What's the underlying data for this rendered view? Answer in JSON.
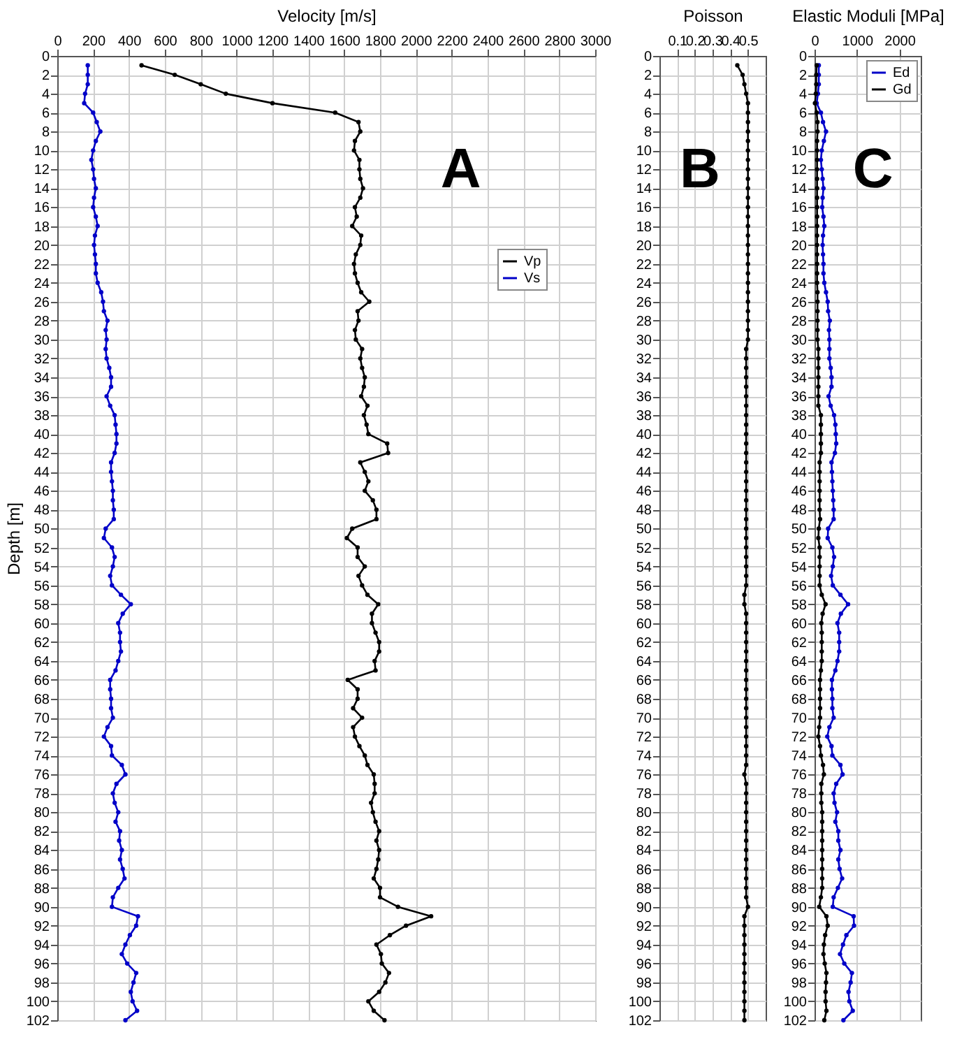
{
  "chart_data": [
    {
      "type": "line",
      "xlabel": "Velocity [m/s]",
      "ylabel": "Depth [m]",
      "annotations": [
        "A"
      ],
      "xlim": [
        0,
        3000
      ],
      "xticks": [
        0,
        200,
        400,
        600,
        800,
        1000,
        1200,
        1400,
        1600,
        1800,
        2000,
        2200,
        2400,
        2600,
        2800,
        3000
      ],
      "ylim": [
        102,
        0
      ],
      "yticks": [
        0,
        2,
        4,
        6,
        8,
        10,
        12,
        14,
        16,
        18,
        20,
        22,
        24,
        26,
        28,
        30,
        32,
        34,
        36,
        38,
        40,
        42,
        44,
        46,
        48,
        50,
        52,
        54,
        56,
        58,
        60,
        62,
        64,
        66,
        68,
        70,
        72,
        74,
        76,
        78,
        80,
        82,
        84,
        86,
        88,
        90,
        92,
        94,
        96,
        98,
        100,
        102
      ],
      "grid": true,
      "legend": "right",
      "marker": "circle",
      "line_style": "solid",
      "series": [
        {
          "name": "Vp",
          "color": "#000000",
          "x": [
            470,
            655,
            800,
            940,
            1200,
            1550,
            1680,
            1690,
            1660,
            1655,
            1685,
            1685,
            1690,
            1705,
            1690,
            1660,
            1670,
            1645,
            1695,
            1690,
            1665,
            1655,
            1660,
            1675,
            1695,
            1740,
            1675,
            1680,
            1660,
            1665,
            1700,
            1690,
            1700,
            1715,
            1710,
            1695,
            1730,
            1710,
            1725,
            1735,
            1840,
            1845,
            1690,
            1715,
            1735,
            1715,
            1760,
            1780,
            1780,
            1645,
            1615,
            1675,
            1675,
            1715,
            1680,
            1700,
            1730,
            1790,
            1755,
            1755,
            1775,
            1795,
            1795,
            1770,
            1775,
            1620,
            1675,
            1675,
            1650,
            1700,
            1650,
            1660,
            1685,
            1715,
            1730,
            1765,
            1770,
            1770,
            1750,
            1760,
            1775,
            1795,
            1780,
            1795,
            1790,
            1780,
            1765,
            1800,
            1800,
            1900,
            2085,
            1945,
            1855,
            1780,
            1805,
            1810,
            1850,
            1830,
            1795,
            1735,
            1765,
            1825
          ],
          "values": [
            1,
            2,
            3,
            4,
            5,
            6,
            7,
            8,
            9,
            10,
            11,
            12,
            13,
            14,
            15,
            16,
            17,
            18,
            19,
            20,
            21,
            22,
            23,
            24,
            25,
            26,
            27,
            28,
            29,
            30,
            31,
            32,
            33,
            34,
            35,
            36,
            37,
            38,
            39,
            40,
            41,
            42,
            43,
            44,
            45,
            46,
            47,
            48,
            49,
            50,
            51,
            52,
            53,
            54,
            55,
            56,
            57,
            58,
            59,
            60,
            61,
            62,
            63,
            64,
            65,
            66,
            67,
            68,
            69,
            70,
            71,
            72,
            73,
            74,
            75,
            76,
            77,
            78,
            79,
            80,
            81,
            82,
            83,
            84,
            85,
            86,
            87,
            88,
            89,
            90,
            91,
            92,
            93,
            94,
            95,
            96,
            97,
            98,
            99,
            100,
            101,
            102
          ]
        },
        {
          "name": "Vs",
          "color": "#0000c8",
          "x": [
            170,
            170,
            170,
            155,
            150,
            200,
            220,
            240,
            215,
            200,
            190,
            200,
            205,
            215,
            205,
            200,
            215,
            225,
            210,
            205,
            210,
            215,
            215,
            225,
            245,
            255,
            260,
            280,
            270,
            275,
            270,
            275,
            290,
            300,
            300,
            275,
            295,
            320,
            325,
            330,
            330,
            320,
            300,
            300,
            305,
            310,
            310,
            315,
            315,
            270,
            260,
            305,
            320,
            310,
            295,
            305,
            355,
            410,
            365,
            340,
            350,
            350,
            355,
            340,
            325,
            295,
            295,
            300,
            300,
            310,
            280,
            260,
            300,
            305,
            360,
            380,
            330,
            310,
            320,
            340,
            325,
            350,
            345,
            360,
            350,
            365,
            375,
            340,
            310,
            305,
            450,
            440,
            405,
            380,
            360,
            390,
            440,
            425,
            410,
            420,
            445,
            380
          ],
          "values": [
            1,
            2,
            3,
            4,
            5,
            6,
            7,
            8,
            9,
            10,
            11,
            12,
            13,
            14,
            15,
            16,
            17,
            18,
            19,
            20,
            21,
            22,
            23,
            24,
            25,
            26,
            27,
            28,
            29,
            30,
            31,
            32,
            33,
            34,
            35,
            36,
            37,
            38,
            39,
            40,
            41,
            42,
            43,
            44,
            45,
            46,
            47,
            48,
            49,
            50,
            51,
            52,
            53,
            54,
            55,
            56,
            57,
            58,
            59,
            60,
            61,
            62,
            63,
            64,
            65,
            66,
            67,
            68,
            69,
            70,
            71,
            72,
            73,
            74,
            75,
            76,
            77,
            78,
            79,
            80,
            81,
            82,
            83,
            84,
            85,
            86,
            87,
            88,
            89,
            90,
            91,
            92,
            93,
            94,
            95,
            96,
            97,
            98,
            99,
            100,
            101,
            102
          ]
        }
      ]
    },
    {
      "type": "line",
      "xlabel": "Poisson",
      "annotations": [
        "B"
      ],
      "xlim": [
        0,
        0.6
      ],
      "xticks": [
        0.1,
        0.2,
        0.3,
        0.4,
        0.5
      ],
      "ylim": [
        102,
        0
      ],
      "yticks": [
        0,
        2,
        4,
        6,
        8,
        10,
        12,
        14,
        16,
        18,
        20,
        22,
        24,
        26,
        28,
        30,
        32,
        34,
        36,
        38,
        40,
        42,
        44,
        46,
        48,
        50,
        52,
        54,
        56,
        58,
        60,
        62,
        64,
        66,
        68,
        70,
        72,
        74,
        76,
        78,
        80,
        82,
        84,
        86,
        88,
        90,
        92,
        94,
        96,
        98,
        100,
        102
      ],
      "grid": true,
      "marker": "circle",
      "line_style": "solid",
      "series": [
        {
          "color": "#000000",
          "x": [
            0.44,
            0.47,
            0.48,
            0.49,
            0.5,
            0.5,
            0.5,
            0.5,
            0.5,
            0.5,
            0.5,
            0.5,
            0.5,
            0.5,
            0.5,
            0.5,
            0.5,
            0.5,
            0.5,
            0.5,
            0.5,
            0.5,
            0.5,
            0.5,
            0.5,
            0.5,
            0.5,
            0.5,
            0.5,
            0.5,
            0.49,
            0.49,
            0.49,
            0.49,
            0.49,
            0.49,
            0.49,
            0.49,
            0.49,
            0.49,
            0.49,
            0.49,
            0.49,
            0.49,
            0.49,
            0.49,
            0.49,
            0.49,
            0.49,
            0.49,
            0.49,
            0.49,
            0.49,
            0.49,
            0.49,
            0.49,
            0.48,
            0.48,
            0.49,
            0.49,
            0.49,
            0.49,
            0.49,
            0.49,
            0.49,
            0.49,
            0.49,
            0.49,
            0.49,
            0.49,
            0.49,
            0.49,
            0.49,
            0.49,
            0.49,
            0.48,
            0.49,
            0.49,
            0.49,
            0.49,
            0.49,
            0.49,
            0.49,
            0.49,
            0.49,
            0.49,
            0.49,
            0.49,
            0.49,
            0.5,
            0.48,
            0.48,
            0.48,
            0.48,
            0.48,
            0.48,
            0.48,
            0.48,
            0.48,
            0.48,
            0.48,
            0.48
          ],
          "values": [
            1,
            2,
            3,
            4,
            5,
            6,
            7,
            8,
            9,
            10,
            11,
            12,
            13,
            14,
            15,
            16,
            17,
            18,
            19,
            20,
            21,
            22,
            23,
            24,
            25,
            26,
            27,
            28,
            29,
            30,
            31,
            32,
            33,
            34,
            35,
            36,
            37,
            38,
            39,
            40,
            41,
            42,
            43,
            44,
            45,
            46,
            47,
            48,
            49,
            50,
            51,
            52,
            53,
            54,
            55,
            56,
            57,
            58,
            59,
            60,
            61,
            62,
            63,
            64,
            65,
            66,
            67,
            68,
            69,
            70,
            71,
            72,
            73,
            74,
            75,
            76,
            77,
            78,
            79,
            80,
            81,
            82,
            83,
            84,
            85,
            86,
            87,
            88,
            89,
            90,
            91,
            92,
            93,
            94,
            95,
            96,
            97,
            98,
            99,
            100,
            101,
            102
          ]
        }
      ]
    },
    {
      "type": "line",
      "xlabel": "Elastic Moduli [MPa]",
      "annotations": [
        "C"
      ],
      "xlim": [
        0,
        2500
      ],
      "xticks": [
        0,
        1000,
        2000
      ],
      "ylim": [
        102,
        0
      ],
      "yticks": [
        0,
        2,
        4,
        6,
        8,
        10,
        12,
        14,
        16,
        18,
        20,
        22,
        24,
        26,
        28,
        30,
        32,
        34,
        36,
        38,
        40,
        42,
        44,
        46,
        48,
        50,
        52,
        54,
        56,
        58,
        60,
        62,
        64,
        66,
        68,
        70,
        72,
        74,
        76,
        78,
        80,
        82,
        84,
        86,
        88,
        90,
        92,
        94,
        96,
        98,
        100,
        102
      ],
      "grid": true,
      "legend": "top right",
      "marker": "circle",
      "line_style": "solid",
      "series": [
        {
          "name": "Ed",
          "color": "#0000c8",
          "x": [
            100,
            100,
            100,
            80,
            50,
            150,
            200,
            270,
            220,
            170,
            150,
            170,
            190,
            210,
            190,
            180,
            210,
            230,
            200,
            190,
            200,
            210,
            210,
            230,
            270,
            310,
            320,
            360,
            340,
            350,
            350,
            350,
            380,
            400,
            400,
            330,
            380,
            460,
            490,
            500,
            510,
            480,
            400,
            410,
            420,
            430,
            440,
            450,
            450,
            320,
            310,
            420,
            460,
            430,
            390,
            430,
            610,
            790,
            620,
            540,
            580,
            580,
            580,
            540,
            490,
            410,
            410,
            420,
            420,
            450,
            350,
            300,
            400,
            420,
            610,
            660,
            510,
            450,
            470,
            530,
            490,
            560,
            560,
            610,
            560,
            590,
            650,
            550,
            450,
            430,
            920,
            930,
            750,
            670,
            600,
            700,
            880,
            850,
            800,
            820,
            900,
            680
          ],
          "values": [
            1,
            2,
            3,
            4,
            5,
            6,
            7,
            8,
            9,
            10,
            11,
            12,
            13,
            14,
            15,
            16,
            17,
            18,
            19,
            20,
            21,
            22,
            23,
            24,
            25,
            26,
            27,
            28,
            29,
            30,
            31,
            32,
            33,
            34,
            35,
            36,
            37,
            38,
            39,
            40,
            41,
            42,
            43,
            44,
            45,
            46,
            47,
            48,
            49,
            50,
            51,
            52,
            53,
            54,
            55,
            56,
            57,
            58,
            59,
            60,
            61,
            62,
            63,
            64,
            65,
            66,
            67,
            68,
            69,
            70,
            71,
            72,
            73,
            74,
            75,
            76,
            77,
            78,
            79,
            80,
            81,
            82,
            83,
            84,
            85,
            86,
            87,
            88,
            89,
            90,
            91,
            92,
            93,
            94,
            95,
            96,
            97,
            98,
            99,
            100,
            101,
            102
          ]
        },
        {
          "name": "Gd",
          "color": "#000000",
          "x": [
            50,
            40,
            40,
            30,
            10,
            50,
            70,
            70,
            60,
            60,
            60,
            60,
            60,
            60,
            60,
            60,
            60,
            60,
            60,
            60,
            60,
            60,
            60,
            60,
            70,
            70,
            70,
            70,
            70,
            70,
            90,
            90,
            90,
            90,
            90,
            90,
            90,
            150,
            150,
            150,
            150,
            150,
            120,
            120,
            120,
            120,
            120,
            120,
            130,
            100,
            90,
            120,
            120,
            120,
            120,
            120,
            170,
            260,
            190,
            160,
            170,
            170,
            170,
            170,
            150,
            130,
            130,
            130,
            130,
            130,
            110,
            90,
            130,
            150,
            200,
            220,
            160,
            160,
            160,
            180,
            180,
            180,
            180,
            180,
            180,
            180,
            180,
            180,
            150,
            110,
            280,
            310,
            250,
            220,
            210,
            240,
            280,
            270,
            260,
            260,
            280,
            230
          ],
          "values": [
            1,
            2,
            3,
            4,
            5,
            6,
            7,
            8,
            9,
            10,
            11,
            12,
            13,
            14,
            15,
            16,
            17,
            18,
            19,
            20,
            21,
            22,
            23,
            24,
            25,
            26,
            27,
            28,
            29,
            30,
            31,
            32,
            33,
            34,
            35,
            36,
            37,
            38,
            39,
            40,
            41,
            42,
            43,
            44,
            45,
            46,
            47,
            48,
            49,
            50,
            51,
            52,
            53,
            54,
            55,
            56,
            57,
            58,
            59,
            60,
            61,
            62,
            63,
            64,
            65,
            66,
            67,
            68,
            69,
            70,
            71,
            72,
            73,
            74,
            75,
            76,
            77,
            78,
            79,
            80,
            81,
            82,
            83,
            84,
            85,
            86,
            87,
            88,
            89,
            90,
            91,
            92,
            93,
            94,
            95,
            96,
            97,
            98,
            99,
            100,
            101,
            102
          ]
        }
      ]
    }
  ]
}
